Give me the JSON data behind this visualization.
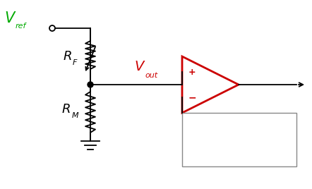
{
  "vref_label": "V",
  "vref_sub": "ref",
  "vout_label": "V",
  "vout_sub": "out",
  "rf_label": "R",
  "rf_sub": "F",
  "rm_label": "R",
  "rm_sub": "M",
  "plus_label": "+",
  "minus_label": "−",
  "color_green": "#00aa00",
  "color_red": "#cc0000",
  "color_black": "#000000",
  "color_gray": "#888888",
  "bg_color": "#ffffff",
  "figsize": [
    4.42,
    2.68
  ],
  "dpi": 100
}
